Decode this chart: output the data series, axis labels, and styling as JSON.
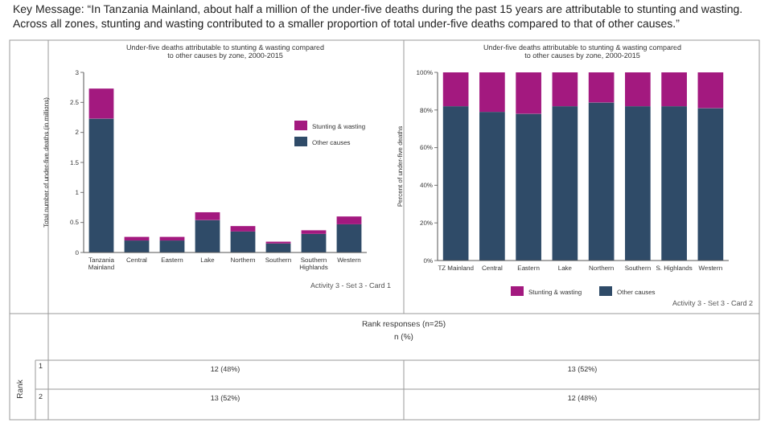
{
  "chart_data": [
    {
      "type": "bar",
      "title": "Under-five deaths attributable to stunting & wasting compared to other causes by zone, 2000-2015",
      "ylabel": "Total number of under-five deaths (in millions)",
      "stacked": true,
      "legend": "right",
      "annotations": [
        "Key Message: “In Tanzania Mainland, about half a million of the under-five deaths during the past 15 years are attributable to stunting and wasting. Across all zones, stunting and wasting contributed to a smaller proportion of total under-five deaths compared to that of other causes.”",
        "Activity 3 - Set 3 - Card 1"
      ],
      "categories": [
        "Tanzania Mainland",
        "Central",
        "Eastern",
        "Lake",
        "Northern",
        "Southern",
        "Southern Highlands",
        "Western"
      ],
      "ylim": [
        0,
        3
      ],
      "yticks": [
        0,
        0.5,
        1,
        1.5,
        2,
        2.5,
        3
      ],
      "series": [
        {
          "name": "Other causes",
          "color": "#2f4b68",
          "values": [
            2.23,
            0.2,
            0.2,
            0.54,
            0.35,
            0.15,
            0.31,
            0.47
          ]
        },
        {
          "name": "Stunting & wasting",
          "color": "#a3197f",
          "values": [
            0.5,
            0.06,
            0.06,
            0.13,
            0.09,
            0.03,
            0.06,
            0.13
          ]
        }
      ]
    },
    {
      "type": "bar",
      "title": "Under-five deaths attributable to stunting & wasting compared to other causes by zone, 2000-2015",
      "ylabel": "Percent of under-five deaths",
      "stacked": true,
      "legend": "bottom",
      "annotations": [
        "Activity 3 - Set 3 - Card 2"
      ],
      "categories": [
        "TZ Mainland",
        "Central",
        "Eastern",
        "Lake",
        "Northern",
        "Southern",
        "S. Highlands",
        "Western"
      ],
      "ylim": [
        0,
        100
      ],
      "yticks": [
        {
          "value": 0,
          "label": "0%"
        },
        {
          "value": 20,
          "label": "20%"
        },
        {
          "value": 40,
          "label": "40%"
        },
        {
          "value": 60,
          "label": "60%"
        },
        {
          "value": 80,
          "label": "80%"
        },
        {
          "value": 100,
          "label": "100%"
        }
      ],
      "series": [
        {
          "name": "Other causes",
          "color": "#2f4b68",
          "values": [
            82,
            79,
            78,
            82,
            84,
            82,
            82,
            81
          ]
        },
        {
          "name": "Stunting & wasting",
          "color": "#a3197f",
          "values": [
            18,
            21,
            22,
            18,
            16,
            18,
            18,
            19
          ]
        }
      ]
    },
    {
      "type": "other",
      "title": "Rank responses (n=25)",
      "subtitle": "n (%)",
      "ylabel": "Rank",
      "y_categories": [
        "1",
        "2"
      ],
      "cell_labels": [
        [
          "12 (48%)",
          "13 (52%)"
        ],
        [
          "13 (52%)",
          "12 (48%)"
        ]
      ]
    }
  ]
}
